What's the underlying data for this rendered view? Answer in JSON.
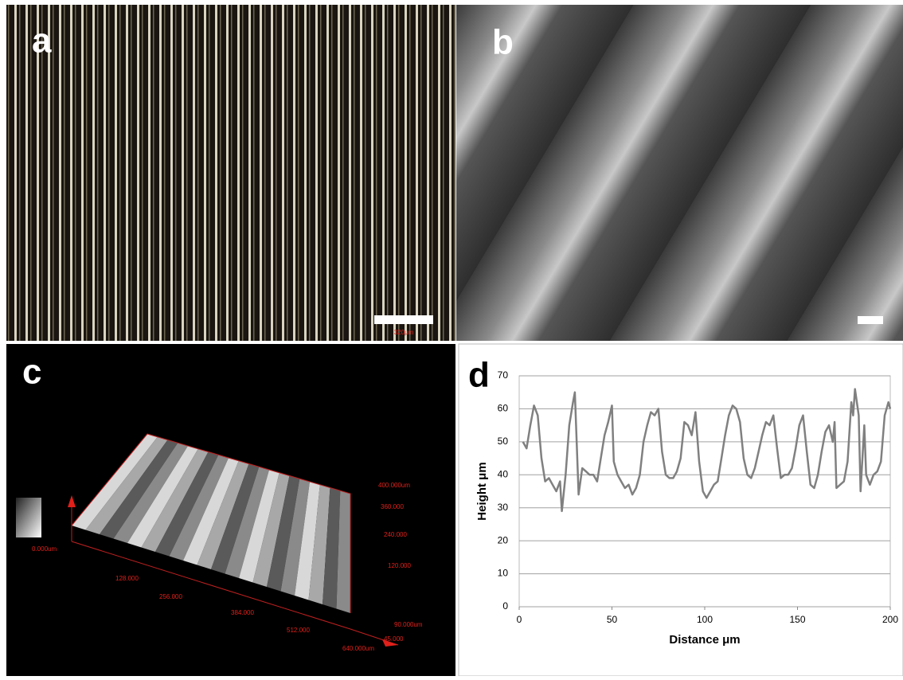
{
  "panels": {
    "a": {
      "label": "a",
      "scale_bar": "320μm"
    },
    "b": {
      "label": "b"
    },
    "c": {
      "label": "c",
      "axis_labels": [
        "400.000um",
        "360.000",
        "240.000",
        "120.000",
        "0.000um",
        "128.000",
        "256.000",
        "384.000",
        "512.000",
        "640.000um",
        "90.000um",
        "45.000"
      ]
    },
    "d": {
      "label": "d"
    }
  },
  "chart_data": {
    "type": "line",
    "x_label": "Distance μm",
    "y_label": "Height μm",
    "x": [
      2,
      4,
      6,
      8,
      10,
      12,
      14,
      16,
      18,
      20,
      22,
      23,
      25,
      27,
      29,
      30,
      31,
      32,
      34,
      36,
      38,
      40,
      42,
      44,
      46,
      48,
      50,
      51,
      53,
      55,
      57,
      59,
      61,
      63,
      65,
      67,
      69,
      71,
      73,
      75,
      77,
      79,
      81,
      83,
      85,
      87,
      89,
      91,
      93,
      95,
      97,
      99,
      101,
      103,
      105,
      107,
      109,
      111,
      113,
      115,
      117,
      119,
      121,
      123,
      125,
      127,
      129,
      131,
      133,
      135,
      137,
      139,
      141,
      143,
      145,
      147,
      149,
      151,
      153,
      155,
      157,
      159,
      161,
      163,
      165,
      167,
      169,
      170,
      171,
      173,
      175,
      177,
      179,
      180,
      181,
      183,
      184,
      186,
      187,
      189,
      191,
      193,
      195,
      197,
      199,
      200
    ],
    "values": [
      50,
      48,
      55,
      61,
      58,
      45,
      38,
      39,
      37,
      35,
      38,
      29,
      40,
      55,
      62,
      65,
      50,
      34,
      42,
      41,
      40,
      40,
      38,
      45,
      52,
      56,
      61,
      44,
      40,
      38,
      36,
      37,
      34,
      36,
      40,
      50,
      55,
      59,
      58,
      60,
      47,
      40,
      39,
      39,
      41,
      45,
      56,
      55,
      52,
      59,
      44,
      35,
      33,
      35,
      37,
      38,
      45,
      52,
      58,
      61,
      60,
      56,
      45,
      40,
      39,
      42,
      47,
      52,
      56,
      55,
      58,
      48,
      39,
      40,
      40,
      42,
      48,
      55,
      58,
      47,
      37,
      36,
      40,
      47,
      53,
      55,
      50,
      56,
      36,
      37,
      38,
      44,
      62,
      58,
      66,
      58,
      35,
      55,
      40,
      37,
      40,
      41,
      44,
      58,
      62,
      60
    ],
    "color": "#808080",
    "xlim": [
      0,
      200
    ],
    "xticks": [
      0,
      50,
      100,
      150,
      200
    ],
    "ylim": [
      0,
      70
    ],
    "yticks": [
      0,
      10,
      20,
      30,
      40,
      50,
      60,
      70
    ],
    "grid": true
  }
}
